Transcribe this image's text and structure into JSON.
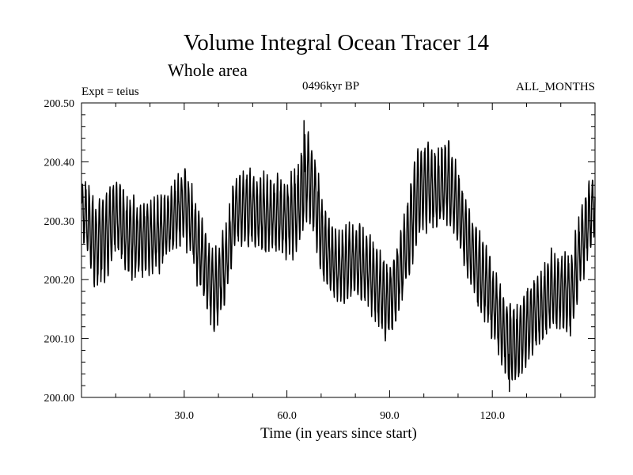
{
  "chart_data": {
    "type": "line",
    "title": "Volume Integral Ocean Tracer 14",
    "subtitle": "Whole area",
    "experiment": "Expt = teius",
    "period": "0496kyr BP",
    "months": "ALL_MONTHS",
    "xlabel": "Time (in years since start)",
    "ylabel": "",
    "xlim": [
      0,
      150
    ],
    "ylim": [
      200.0,
      200.5
    ],
    "xticks": [
      30,
      60,
      90,
      120
    ],
    "xtick_labels": [
      "30.0",
      "60.0",
      "90.0",
      "120.0"
    ],
    "yticks": [
      200.0,
      200.1,
      200.2,
      200.3,
      200.4,
      200.5
    ],
    "ytick_labels": [
      "200.00",
      "200.10",
      "200.20",
      "200.30",
      "200.40",
      "200.50"
    ],
    "grid": false,
    "series": [
      {
        "name": "Volume Integral Ocean Tracer 14",
        "sampling": "monthly, annual cycle superimposed on slow variability",
        "envelope_x": [
          0,
          2,
          4,
          7,
          10,
          13,
          16,
          20,
          25,
          30,
          33,
          36,
          39,
          42,
          45,
          48,
          52,
          56,
          60,
          63,
          66,
          68,
          71,
          75,
          80,
          84,
          87,
          89,
          92,
          95,
          98,
          101,
          104,
          107,
          110,
          113,
          116,
          119,
          122,
          124,
          126,
          128,
          131,
          134,
          137,
          140,
          143,
          146,
          148,
          150
        ],
        "center_values": [
          200.32,
          200.3,
          200.26,
          200.27,
          200.31,
          200.28,
          200.27,
          200.27,
          200.29,
          200.33,
          200.28,
          200.22,
          200.18,
          200.22,
          200.32,
          200.32,
          200.31,
          200.31,
          200.3,
          200.32,
          200.38,
          200.34,
          200.25,
          200.22,
          200.23,
          200.22,
          200.18,
          200.16,
          200.19,
          200.26,
          200.34,
          200.36,
          200.35,
          200.37,
          200.32,
          200.26,
          200.22,
          200.18,
          200.13,
          200.1,
          200.09,
          200.1,
          200.13,
          200.15,
          200.18,
          200.18,
          200.17,
          200.26,
          200.3,
          200.33
        ],
        "half_amplitudes": [
          0.04,
          0.06,
          0.07,
          0.07,
          0.06,
          0.06,
          0.06,
          0.06,
          0.05,
          0.06,
          0.06,
          0.06,
          0.06,
          0.06,
          0.06,
          0.06,
          0.06,
          0.06,
          0.06,
          0.07,
          0.07,
          0.07,
          0.06,
          0.06,
          0.06,
          0.06,
          0.06,
          0.06,
          0.06,
          0.07,
          0.07,
          0.07,
          0.06,
          0.07,
          0.06,
          0.06,
          0.06,
          0.06,
          0.06,
          0.06,
          0.06,
          0.06,
          0.06,
          0.06,
          0.06,
          0.06,
          0.06,
          0.06,
          0.06,
          0.05
        ],
        "notable_values": {
          "max": 200.47,
          "max_at": 65,
          "min": 200.01,
          "min_at": 125
        }
      }
    ]
  }
}
